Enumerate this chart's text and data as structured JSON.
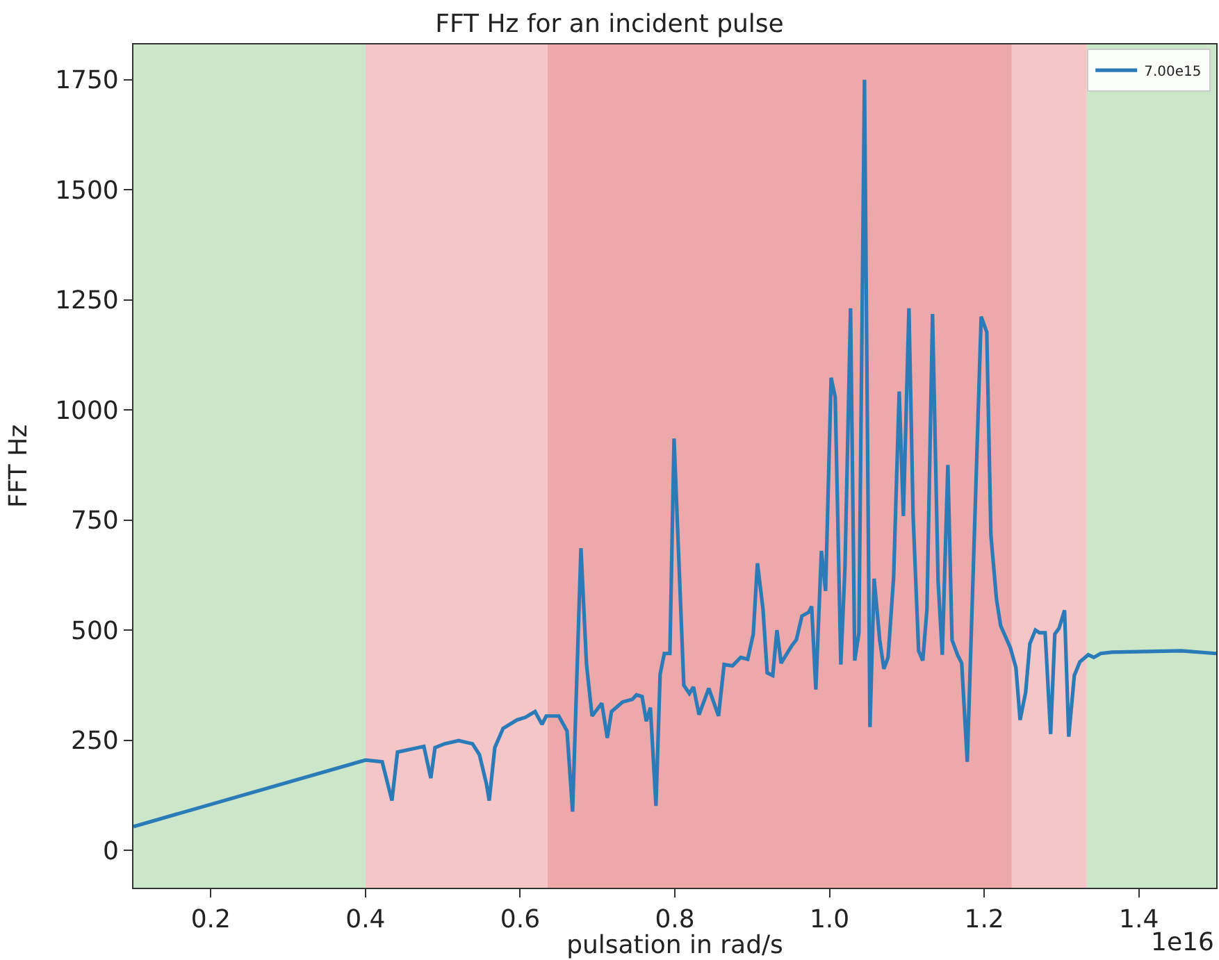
{
  "chart_data": {
    "type": "line",
    "title": "FFT Hz for an incident pulse",
    "xlabel": "pulsation in rad/s",
    "ylabel": "FFT Hz",
    "x": [
      0.1,
      0.4001,
      0.4216,
      0.4342,
      0.4414,
      0.4755,
      0.4845,
      0.4899,
      0.5025,
      0.5205,
      0.5384,
      0.5474,
      0.5564,
      0.56,
      0.5672,
      0.578,
      0.5959,
      0.6067,
      0.6193,
      0.6283,
      0.6337,
      0.6499,
      0.6606,
      0.6678,
      0.6786,
      0.6858,
      0.693,
      0.7056,
      0.7127,
      0.7181,
      0.7325,
      0.7451,
      0.7505,
      0.7577,
      0.7631,
      0.7684,
      0.7756,
      0.781,
      0.7864,
      0.7936,
      0.799,
      0.8116,
      0.8188,
      0.8241,
      0.8313,
      0.8439,
      0.8565,
      0.8637,
      0.8745,
      0.8852,
      0.8942,
      0.9014,
      0.9068,
      0.914,
      0.9194,
      0.9266,
      0.932,
      0.9374,
      0.9517,
      0.9571,
      0.9643,
      0.9733,
      0.9769,
      0.9823,
      0.9895,
      0.9949,
      1.0021,
      1.0074,
      1.0146,
      1.02,
      1.0272,
      1.0326,
      1.038,
      1.0452,
      1.0523,
      1.0577,
      1.0649,
      1.0703,
      1.0757,
      1.0829,
      1.0901,
      1.0955,
      1.1027,
      1.1081,
      1.1152,
      1.1206,
      1.126,
      1.1332,
      1.1404,
      1.1458,
      1.153,
      1.1584,
      1.1655,
      1.1709,
      1.1781,
      1.1961,
      1.2033,
      1.2087,
      1.2159,
      1.2213,
      1.2338,
      1.241,
      1.2464,
      1.2536,
      1.259,
      1.2662,
      1.2716,
      1.2788,
      1.2859,
      1.2913,
      1.2967,
      1.3039,
      1.3093,
      1.3165,
      1.3237,
      1.3345,
      1.3417,
      1.3506,
      1.365,
      1.4548,
      1.5
    ],
    "series": [
      {
        "name": "7.00e15",
        "color": "#2a7bb8",
        "values": [
          54,
          205,
          201,
          113,
          223,
          236,
          164,
          233,
          242,
          249,
          242,
          217,
          151,
          113,
          233,
          277,
          296,
          302,
          315,
          286,
          305,
          305,
          271,
          88,
          686,
          422,
          305,
          334,
          255,
          315,
          337,
          343,
          353,
          349,
          293,
          324,
          101,
          400,
          447,
          447,
          935,
          375,
          356,
          371,
          308,
          368,
          305,
          422,
          419,
          438,
          434,
          491,
          652,
          548,
          403,
          397,
          500,
          425,
          466,
          478,
          532,
          541,
          554,
          365,
          680,
          589,
          1073,
          1029,
          422,
          642,
          1231,
          431,
          494,
          1750,
          280,
          617,
          478,
          412,
          438,
          620,
          1042,
          759,
          1231,
          759,
          453,
          431,
          548,
          1218,
          611,
          444,
          875,
          478,
          444,
          425,
          201,
          1212,
          1177,
          715,
          570,
          510,
          460,
          415,
          296,
          359,
          469,
          500,
          494,
          494,
          264,
          491,
          504,
          545,
          258,
          397,
          428,
          444,
          438,
          447,
          450,
          453,
          447
        ]
      }
    ],
    "xlim": [
      0.1,
      1.5
    ],
    "xticks": [
      {
        "value": 0.2,
        "label": "0.2"
      },
      {
        "value": 0.4,
        "label": "0.4"
      },
      {
        "value": 0.6,
        "label": "0.6"
      },
      {
        "value": 0.8,
        "label": "0.8"
      },
      {
        "value": 1.0,
        "label": "1.0"
      },
      {
        "value": 1.2,
        "label": "1.2"
      },
      {
        "value": 1.4,
        "label": "1.4"
      }
    ],
    "ylim": [
      -85,
      1830
    ],
    "yticks": [
      0,
      250,
      500,
      750,
      1000,
      1250,
      1500,
      1750
    ],
    "bands": [
      {
        "axis": "x",
        "from": 0.1,
        "to": 0.4,
        "color": "#cbe6c9"
      },
      {
        "axis": "x",
        "from": 0.4,
        "to": 0.6355,
        "color": "#f4c6c7"
      },
      {
        "axis": "x",
        "from": 0.6355,
        "to": 1.2357,
        "color": "#eda8a9"
      },
      {
        "axis": "x",
        "from": 1.2357,
        "to": 1.3327,
        "color": "#f4c6c7"
      },
      {
        "axis": "x",
        "from": 1.3327,
        "to": 1.5,
        "color": "#cbe6c9"
      }
    ],
    "annotations": [
      "1e16"
    ],
    "grid": false,
    "legend": "top right",
    "marker": "none",
    "line_style": "solid"
  }
}
